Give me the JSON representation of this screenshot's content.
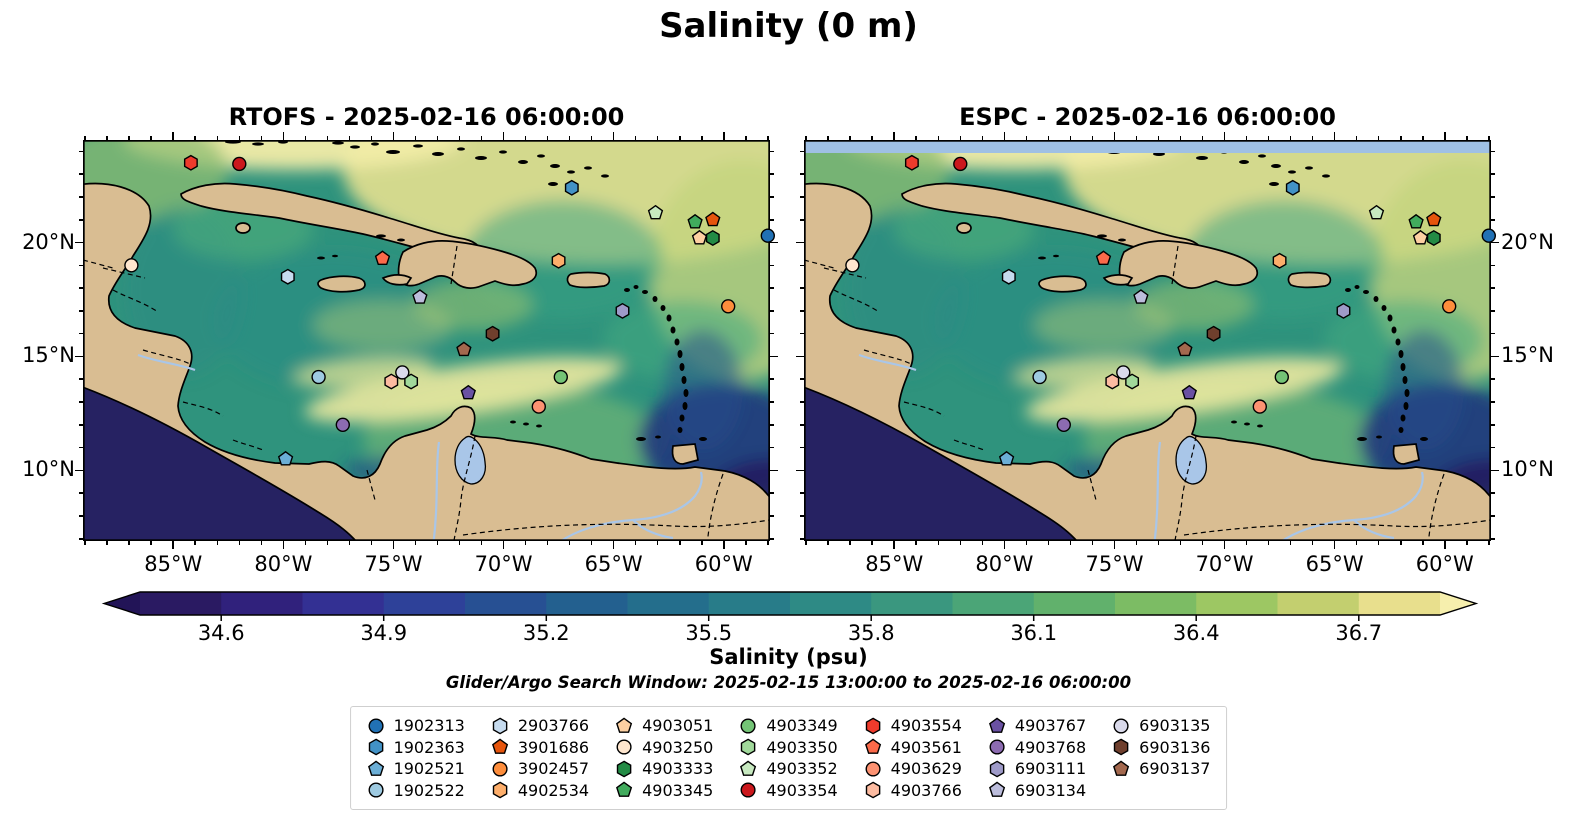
{
  "title": "Salinity (0 m)",
  "panels": [
    {
      "id": "rtofs",
      "title": "RTOFS - 2025-02-16 06:00:00",
      "nodata_band": false
    },
    {
      "id": "espc",
      "title": "ESPC - 2025-02-16 06:00:00",
      "nodata_band": true
    }
  ],
  "axes": {
    "lon_tick_values": [
      -85,
      -80,
      -75,
      -70,
      -65,
      -60
    ],
    "lon_tick_labels": [
      "85°W",
      "80°W",
      "75°W",
      "70°W",
      "65°W",
      "60°W"
    ],
    "lat_tick_values": [
      20,
      15,
      10
    ],
    "lat_tick_labels": [
      "20°N",
      "15°N",
      "10°N"
    ],
    "lon_range_w": [
      -89.1,
      -57.9
    ],
    "lat_range_n": [
      6.9,
      24.5
    ]
  },
  "colorbar": {
    "label": "Salinity (psu)",
    "tick_labels": [
      "34.6",
      "34.9",
      "35.2",
      "35.5",
      "35.8",
      "36.1",
      "36.4",
      "36.7"
    ],
    "tick_values": [
      34.6,
      34.9,
      35.2,
      35.5,
      35.8,
      36.1,
      36.4,
      36.7
    ],
    "range": [
      34.45,
      36.85
    ],
    "segment_colors": [
      "#2a1a62",
      "#30217c",
      "#333093",
      "#2e4199",
      "#275093",
      "#23608f",
      "#246e8c",
      "#287c89",
      "#2e8a85",
      "#3a977f",
      "#4ba577",
      "#61b16c",
      "#7cbc64",
      "#9dc763",
      "#c3cf6f",
      "#e8df8d"
    ],
    "under_color": "#221457",
    "over_color": "#f6efad"
  },
  "search_window_text": "Glider/Argo Search Window: 2025-02-15 13:00:00 to 2025-02-16 06:00:00",
  "map_colors": {
    "land": "#d9bd92",
    "ocean_mid": "#2f937d",
    "coastline": "#000000",
    "lake_river": "#a9c6e8",
    "pacific_dark": "#262262",
    "espc_nodata_band": "#9fc0e4"
  },
  "chart_data": {
    "type": "heatmap",
    "title": "Salinity (0 m)",
    "subtitle": "Glider/Argo Search Window: 2025-02-15 13:00:00 to 2025-02-16 06:00:00",
    "panels": [
      "RTOFS - 2025-02-16 06:00:00",
      "ESPC - 2025-02-16 06:00:00"
    ],
    "variable": "Salinity (psu)",
    "colorbar_ticks": [
      34.6,
      34.9,
      35.2,
      35.5,
      35.8,
      36.1,
      36.4,
      36.7
    ],
    "colorbar_range": [
      34.45,
      36.85
    ],
    "lon_axis_ticks": [
      "85°W",
      "80°W",
      "75°W",
      "70°W",
      "65°W",
      "60°W"
    ],
    "lat_axis_ticks": [
      "20°N",
      "15°N",
      "10°N"
    ],
    "map_extent": {
      "lon_w": [
        -89.1,
        -57.9
      ],
      "lat_n": [
        6.9,
        24.5
      ]
    },
    "platforms": [
      {
        "id": "1902313",
        "marker": "circle",
        "color": "#2171b5",
        "lon": -58.0,
        "lat": 20.3
      },
      {
        "id": "1902363",
        "marker": "hexagon",
        "color": "#4292c6",
        "lon": -66.9,
        "lat": 22.4
      },
      {
        "id": "1902521",
        "marker": "pentagon",
        "color": "#6baed6",
        "lon": -79.9,
        "lat": 10.5
      },
      {
        "id": "1902522",
        "marker": "circle",
        "color": "#9ecae1",
        "lon": -78.4,
        "lat": 14.1
      },
      {
        "id": "2903766",
        "marker": "hexagon",
        "color": "#c6dbef",
        "lon": -79.8,
        "lat": 18.5
      },
      {
        "id": "3901686",
        "marker": "pentagon",
        "color": "#e6550d",
        "lon": -60.5,
        "lat": 21.0
      },
      {
        "id": "3902457",
        "marker": "circle",
        "color": "#fd8d3c",
        "lon": -59.8,
        "lat": 17.2
      },
      {
        "id": "4902534",
        "marker": "hexagon",
        "color": "#fdae6b",
        "lon": -67.5,
        "lat": 19.2
      },
      {
        "id": "4903051",
        "marker": "pentagon",
        "color": "#fdd0a2",
        "lon": -61.1,
        "lat": 20.2
      },
      {
        "id": "4903250",
        "marker": "circle",
        "color": "#fee6ce",
        "lon": -86.9,
        "lat": 19.0
      },
      {
        "id": "4903333",
        "marker": "hexagon",
        "color": "#238b45",
        "lon": -60.5,
        "lat": 20.2
      },
      {
        "id": "4903345",
        "marker": "pentagon",
        "color": "#41ab5d",
        "lon": -61.3,
        "lat": 20.9
      },
      {
        "id": "4903349",
        "marker": "circle",
        "color": "#74c476",
        "lon": -67.4,
        "lat": 14.1
      },
      {
        "id": "4903350",
        "marker": "hexagon",
        "color": "#a1d99b",
        "lon": -74.2,
        "lat": 13.9
      },
      {
        "id": "4903352",
        "marker": "pentagon",
        "color": "#c7e9c0",
        "lon": -63.1,
        "lat": 21.3
      },
      {
        "id": "4903354",
        "marker": "circle",
        "color": "#cb181d",
        "lon": -82.0,
        "lat": 23.45
      },
      {
        "id": "4903554",
        "marker": "hexagon",
        "color": "#ef3b2c",
        "lon": -84.2,
        "lat": 23.5
      },
      {
        "id": "4903561",
        "marker": "pentagon",
        "color": "#fb6a4a",
        "lon": -75.5,
        "lat": 19.3
      },
      {
        "id": "4903629",
        "marker": "circle",
        "color": "#fc9272",
        "lon": -68.4,
        "lat": 12.8
      },
      {
        "id": "4903766",
        "marker": "hexagon",
        "color": "#fcbba1",
        "lon": -75.1,
        "lat": 13.9
      },
      {
        "id": "4903767",
        "marker": "pentagon",
        "color": "#6a51a3",
        "lon": -71.6,
        "lat": 13.4
      },
      {
        "id": "4903768",
        "marker": "circle",
        "color": "#8c6bb1",
        "lon": -77.3,
        "lat": 12.0
      },
      {
        "id": "6903111",
        "marker": "hexagon",
        "color": "#9e9ac8",
        "lon": -64.6,
        "lat": 17.0
      },
      {
        "id": "6903134",
        "marker": "pentagon",
        "color": "#bcbddc",
        "lon": -73.8,
        "lat": 17.6
      },
      {
        "id": "6903135",
        "marker": "circle",
        "color": "#dadaeb",
        "lon": -74.6,
        "lat": 14.3
      },
      {
        "id": "6903136",
        "marker": "hexagon",
        "color": "#6f3f2d",
        "lon": -70.5,
        "lat": 16.0
      },
      {
        "id": "6903137",
        "marker": "pentagon",
        "color": "#a3684e",
        "lon": -71.8,
        "lat": 15.3
      }
    ]
  }
}
